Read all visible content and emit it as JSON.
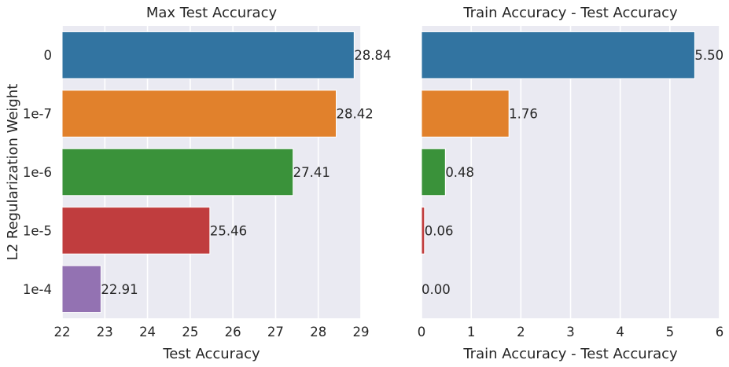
{
  "chart_data": [
    {
      "type": "bar",
      "orientation": "horizontal",
      "title": "Max Test Accuracy",
      "xlabel": "Test Accuracy",
      "ylabel": "L2 Regularization Weight",
      "categories": [
        "0",
        "1e-7",
        "1e-6",
        "1e-5",
        "1e-4"
      ],
      "values": [
        28.84,
        28.42,
        27.41,
        25.46,
        22.91
      ],
      "data_labels": [
        "28.84",
        "28.42",
        "27.41",
        "25.46",
        "22.91"
      ],
      "xlim": [
        22,
        29
      ],
      "xticks": [
        "22",
        "23",
        "24",
        "25",
        "26",
        "27",
        "28",
        "29"
      ],
      "grid": true
    },
    {
      "type": "bar",
      "orientation": "horizontal",
      "title": "Train Accuracy - Test Accuracy",
      "xlabel": "Train Accuracy - Test Accuracy",
      "ylabel": "",
      "categories": [
        "0",
        "1e-7",
        "1e-6",
        "1e-5",
        "1e-4"
      ],
      "values": [
        5.5,
        1.76,
        0.48,
        0.06,
        0.0
      ],
      "data_labels": [
        "5.50",
        "1.76",
        "0.48",
        "0.06",
        "0.00"
      ],
      "xlim": [
        0,
        6
      ],
      "xticks": [
        "0",
        "1",
        "2",
        "3",
        "4",
        "5",
        "6"
      ],
      "grid": true
    }
  ],
  "colors": {
    "background": "#eaeaf2",
    "grid": "#ffffff",
    "bars": [
      "#3274a1",
      "#e1812c",
      "#3a923a",
      "#c03d3e",
      "#9372b2"
    ]
  }
}
